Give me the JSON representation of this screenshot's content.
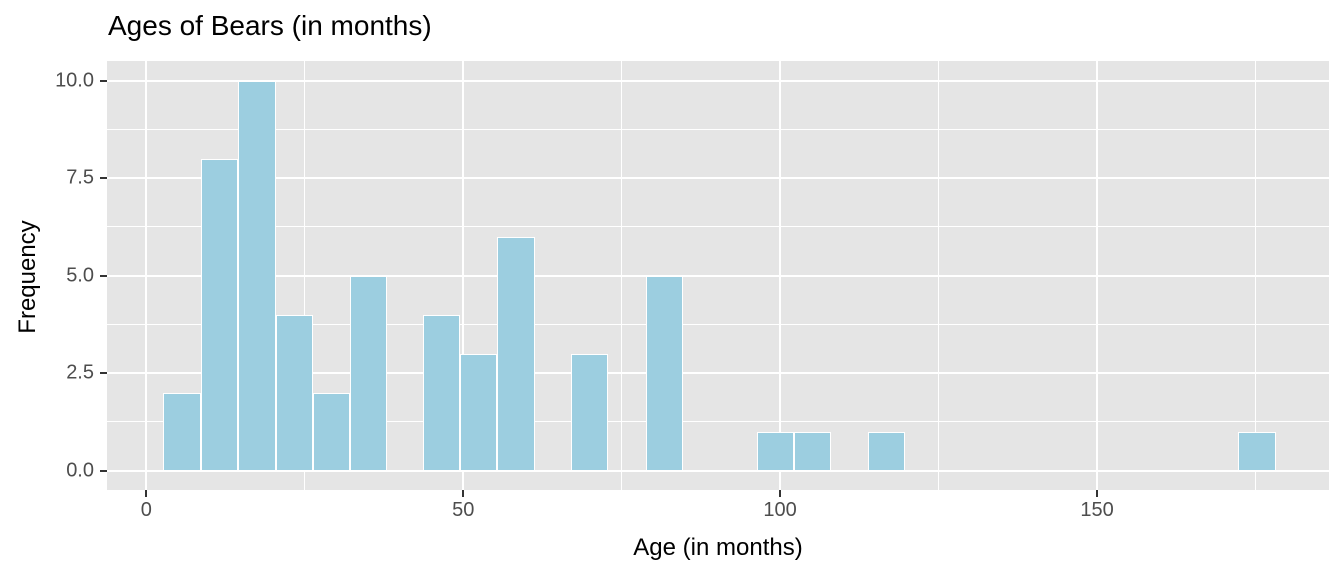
{
  "chart_data": {
    "type": "bar",
    "subtype": "histogram",
    "title": "Ages of Bears (in months)",
    "xlabel": "Age (in months)",
    "ylabel": "Frequency",
    "x_ticks": [
      0,
      50,
      100,
      150
    ],
    "x_tick_labels": [
      "0",
      "50",
      "100",
      "150"
    ],
    "x_minor_ticks": [
      25,
      75,
      125,
      175
    ],
    "y_ticks": [
      0,
      2.5,
      5,
      7.5,
      10
    ],
    "y_tick_labels": [
      "0.0",
      "2.5",
      "5.0",
      "7.5",
      "10.0"
    ],
    "y_minor_ticks": [
      1.25,
      3.75,
      6.25,
      8.75
    ],
    "xlim": [
      -6.2,
      186.6
    ],
    "ylim": [
      -0.5,
      10.5
    ],
    "grid": "on",
    "legend": "none",
    "approx_binwidth_months": 5.9,
    "bins": [
      {
        "x0": 2.7,
        "x1": 8.6,
        "count": 2
      },
      {
        "x0": 8.6,
        "x1": 14.5,
        "count": 8
      },
      {
        "x0": 14.5,
        "x1": 20.4,
        "count": 10
      },
      {
        "x0": 20.4,
        "x1": 26.3,
        "count": 4
      },
      {
        "x0": 26.3,
        "x1": 32.1,
        "count": 2
      },
      {
        "x0": 32.1,
        "x1": 38.0,
        "count": 5
      },
      {
        "x0": 43.6,
        "x1": 49.5,
        "count": 4
      },
      {
        "x0": 49.5,
        "x1": 55.4,
        "count": 3
      },
      {
        "x0": 55.4,
        "x1": 61.3,
        "count": 6
      },
      {
        "x0": 67.0,
        "x1": 72.9,
        "count": 3
      },
      {
        "x0": 78.8,
        "x1": 84.7,
        "count": 5
      },
      {
        "x0": 96.3,
        "x1": 102.2,
        "count": 1
      },
      {
        "x0": 102.2,
        "x1": 108.1,
        "count": 1
      },
      {
        "x0": 113.8,
        "x1": 119.7,
        "count": 1
      },
      {
        "x0": 172.3,
        "x1": 178.2,
        "count": 1
      }
    ],
    "colors": {
      "bar_fill": "#9CCEE0",
      "bar_border": "#FFFFFF",
      "panel_background": "#E5E5E5",
      "gridline": "#FFFFFF",
      "tick_label": "#4D4D4D",
      "tick_mark": "#333333",
      "text": "#000000"
    }
  }
}
